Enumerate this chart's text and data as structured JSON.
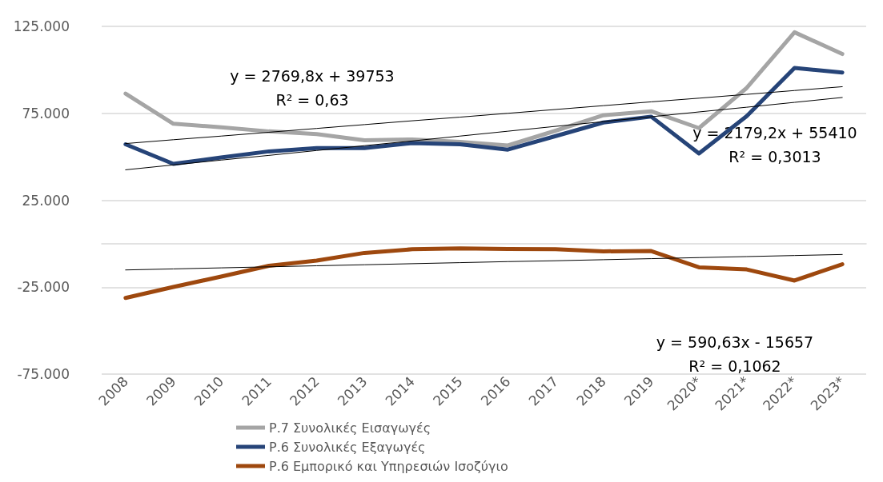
{
  "chart_data": {
    "type": "line",
    "categories": [
      "2008",
      "2009",
      "2010",
      "2011",
      "2012",
      "2013",
      "2014",
      "2015",
      "2016",
      "2017",
      "2018",
      "2019",
      "2020*",
      "2021*",
      "2022*",
      "2023*"
    ],
    "series": [
      {
        "name": "Ρ.7 Συνολικές Εισαγωγές",
        "color": "#a5a5a5",
        "values": [
          86300,
          69000,
          67000,
          64600,
          63000,
          59500,
          60000,
          58600,
          56500,
          65000,
          73900,
          76200,
          66500,
          89600,
          121600,
          109100
        ]
      },
      {
        "name": "Ρ.6 Συνολικές Εξαγωγές",
        "color": "#264478",
        "values": [
          57200,
          45900,
          49600,
          53100,
          55000,
          55000,
          57900,
          57200,
          54100,
          61900,
          69700,
          73100,
          51900,
          73400,
          101100,
          98500
        ]
      },
      {
        "name": "Ρ.6 Εμπορικό και Υπηρεσιών Ισοζύγιο",
        "color": "#9e480e",
        "values": [
          -31200,
          -24900,
          -18900,
          -12700,
          -9700,
          -5300,
          -3200,
          -2700,
          -3100,
          -3200,
          -4400,
          -4200,
          -13600,
          -14800,
          -21200,
          -11800
        ]
      },
      {
        "type": "line",
        "color": "#000000",
        "values": [
          42500,
          45300,
          48100,
          50800,
          53600,
          56400,
          59100,
          61900,
          64700,
          67500,
          70200,
          73000,
          75800,
          78500,
          81300,
          84100
        ]
      },
      {
        "type": "line",
        "color": "#000000",
        "values": [
          57600,
          59800,
          61900,
          64100,
          66300,
          68500,
          70700,
          72800,
          75000,
          77200,
          79400,
          81600,
          83700,
          85900,
          88100,
          90300
        ]
      },
      {
        "type": "line",
        "color": "#000000",
        "values": [
          -15100,
          -14500,
          -13900,
          -13300,
          -12700,
          -12100,
          -11500,
          -10900,
          -10300,
          -9800,
          -9200,
          -8600,
          -8000,
          -7400,
          -6800,
          -6200
        ]
      }
    ],
    "ylim": [
      -75000,
      125000
    ],
    "yticks": [
      {
        "value": -75000,
        "label": "-75.000"
      },
      {
        "value": -25000,
        "label": "-25.000"
      },
      {
        "value": 25000,
        "label": "25.000"
      },
      {
        "value": 75000,
        "label": "75.000"
      },
      {
        "value": 125000,
        "label": "125.000"
      }
    ],
    "grid": "y",
    "legend": "bottom left",
    "marker": "none",
    "line_style": "solid",
    "annotations": [
      "y = 2769,8x + 39753",
      "R² = 0,63",
      "y = 2179,2x + 55410",
      "R² = 0,3013",
      "y = 590,63x - 15657",
      "R² = 0,1062"
    ]
  }
}
